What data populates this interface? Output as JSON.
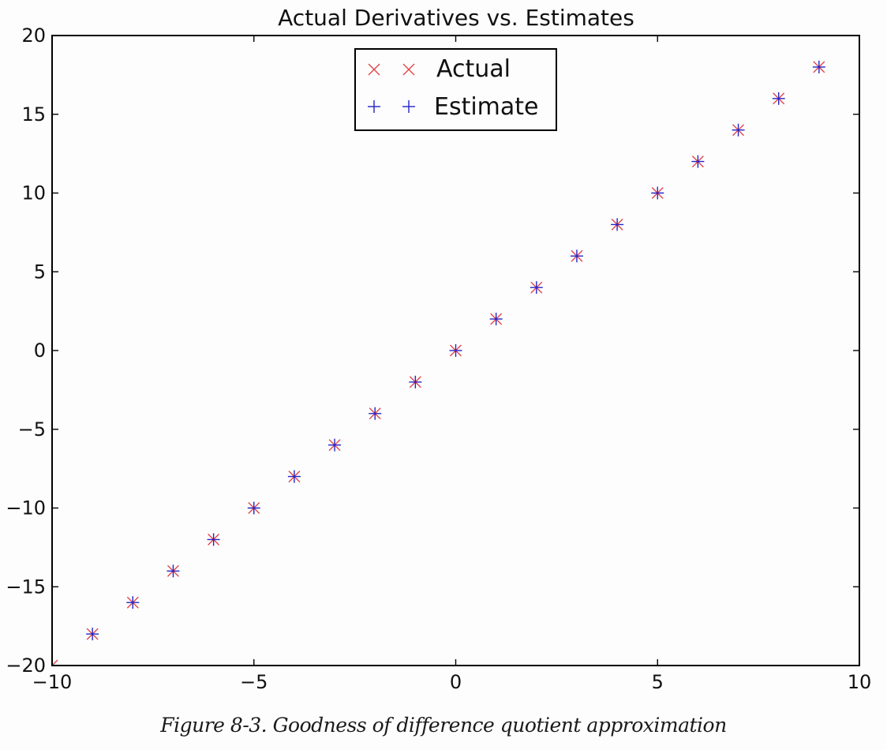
{
  "caption": "Figure 8-3. Goodness of difference quotient approximation",
  "colors": {
    "actual": "#e0474c",
    "estimate": "#2323c8",
    "axes": "#000000",
    "background": "#fdfdfd"
  },
  "chart_data": {
    "type": "scatter",
    "title": "Actual Derivatives vs. Estimates",
    "xlabel": "",
    "ylabel": "",
    "xlim": [
      -10,
      10
    ],
    "ylim": [
      -20,
      20
    ],
    "x_ticks": [
      -10,
      -5,
      0,
      5,
      10
    ],
    "y_ticks": [
      -20,
      -15,
      -10,
      -5,
      0,
      5,
      10,
      15,
      20
    ],
    "x_tick_labels": [
      "−10",
      "−5",
      "0",
      "5",
      "10"
    ],
    "y_tick_labels": [
      "−20",
      "−15",
      "−10",
      "−5",
      "0",
      "5",
      "10",
      "15",
      "20"
    ],
    "grid": false,
    "legend_position": "upper-center",
    "x": [
      -10,
      -9,
      -8,
      -7,
      -6,
      -5,
      -4,
      -3,
      -2,
      -1,
      0,
      1,
      2,
      3,
      4,
      5,
      6,
      7,
      8,
      9
    ],
    "series": [
      {
        "name": "Actual",
        "marker": "x",
        "color": "#e0474c",
        "values": [
          -20,
          -18,
          -16,
          -14,
          -12,
          -10,
          -8,
          -6,
          -4,
          -2,
          0,
          2,
          4,
          6,
          8,
          10,
          12,
          14,
          16,
          18
        ]
      },
      {
        "name": "Estimate",
        "marker": "+",
        "color": "#2323c8",
        "values": [
          -20,
          -18,
          -16,
          -14,
          -12,
          -10,
          -8,
          -6,
          -4,
          -2,
          0,
          2,
          4,
          6,
          8,
          10,
          12,
          14,
          16,
          18
        ]
      }
    ]
  }
}
